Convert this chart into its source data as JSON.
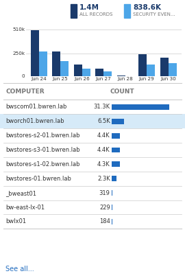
{
  "title_left_val": "1.4M",
  "title_left_sub": "ALL RECORDS",
  "title_right_val": "838.6K",
  "title_right_sub": "SECURITY EVEN...",
  "bar_dates": [
    "Jun 24",
    "Jun 25",
    "Jun 26",
    "Jun 27",
    "Jun 28",
    "Jun 29",
    "Jun 30"
  ],
  "bar_all": [
    500,
    270,
    130,
    80,
    5,
    240,
    205
  ],
  "bar_sec": [
    270,
    165,
    80,
    50,
    3,
    130,
    140
  ],
  "bar_color_dark": "#1a3a6b",
  "bar_color_light": "#4da6e8",
  "ytick_vals": [
    0,
    250,
    510
  ],
  "ytick_labels": [
    "0",
    "250k",
    "510k"
  ],
  "table_headers": [
    "COMPUTER",
    "COUNT"
  ],
  "table_rows": [
    [
      "bwscom01.bwren.lab",
      "31.3K",
      1.0
    ],
    [
      "bworch01.bwren.lab",
      "6.5K",
      0.208
    ],
    [
      "bwstores-s2-01.bwren.lab",
      "4.4K",
      0.141
    ],
    [
      "bwstores-s3-01.bwren.lab",
      "4.4K",
      0.141
    ],
    [
      "bwstores-s1-02.bwren.lab",
      "4.3K",
      0.138
    ],
    [
      "bwstores-01.bwren.lab",
      "2.3K",
      0.074
    ],
    [
      "_bweast01",
      "319",
      0.01
    ],
    [
      "bw-east-lx-01",
      "229",
      0.007
    ],
    [
      "bwlx01",
      "184",
      0.006
    ]
  ],
  "highlighted_row": 1,
  "highlight_color": "#d6eaf8",
  "bar_table_color": "#1f6bbf",
  "see_all_text": "See all...",
  "see_all_color": "#1f6bbf",
  "bg_color": "#ffffff",
  "border_color": "#cccccc",
  "text_color": "#333333",
  "header_color": "#777777"
}
